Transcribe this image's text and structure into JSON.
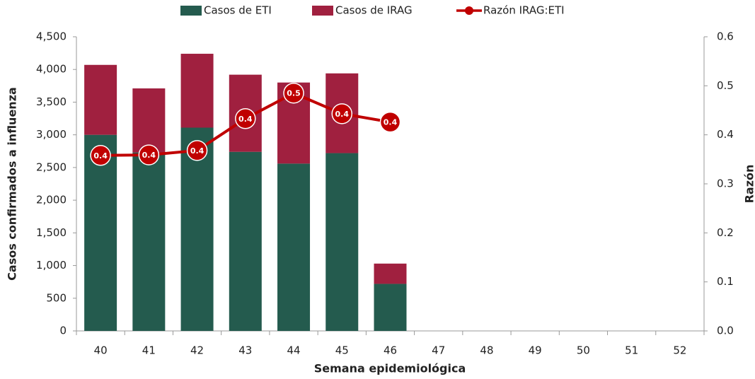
{
  "chart_data": {
    "type": "bar",
    "x_label": "Semana epidemiológica",
    "y_label": "Casos confirmados a influenza",
    "y2_label": "Razón",
    "categories": [
      "40",
      "41",
      "42",
      "43",
      "44",
      "45",
      "46",
      "47",
      "48",
      "49",
      "50",
      "51",
      "52"
    ],
    "stacked": true,
    "series": [
      {
        "name": "Casos de ETI",
        "type": "bar",
        "color": "#245b4e",
        "values": [
          3000,
          2730,
          3110,
          2740,
          2560,
          2720,
          720,
          null,
          null,
          null,
          null,
          null,
          null
        ]
      },
      {
        "name": "Casos de IRAG",
        "type": "bar",
        "color": "#a0203f",
        "values": [
          1070,
          980,
          1130,
          1180,
          1240,
          1220,
          310,
          null,
          null,
          null,
          null,
          null,
          null
        ]
      },
      {
        "name": "Razón IRAG:ETI",
        "type": "line",
        "axis": "y2",
        "color": "#c00000",
        "values": [
          0.358,
          0.359,
          0.368,
          0.433,
          0.485,
          0.443,
          0.426,
          null,
          null,
          null,
          null,
          null,
          null
        ],
        "value_labels": [
          "0.4",
          "0.4",
          "0.4",
          "0.4",
          "0.5",
          "0.4",
          "0.4",
          null,
          null,
          null,
          null,
          null,
          null
        ]
      }
    ],
    "ylim": [
      0,
      4500
    ],
    "yticks": [
      0,
      500,
      {
        "value": 1000,
        "label": "1,000"
      },
      {
        "value": 1500,
        "label": "1,500"
      },
      {
        "value": 2000,
        "label": "2,000"
      },
      {
        "value": 2500,
        "label": "2,500"
      },
      {
        "value": 3000,
        "label": "3,000"
      },
      {
        "value": 3500,
        "label": "3,500"
      },
      {
        "value": 4000,
        "label": "4,000"
      },
      {
        "value": 4500,
        "label": "4,500"
      }
    ],
    "y2lim": [
      0,
      0.6
    ],
    "y2ticks": [
      {
        "value": 0,
        "label": "0.0"
      },
      0.1,
      0.2,
      0.3,
      0.4,
      0.5,
      0.6
    ],
    "legend": "top"
  }
}
